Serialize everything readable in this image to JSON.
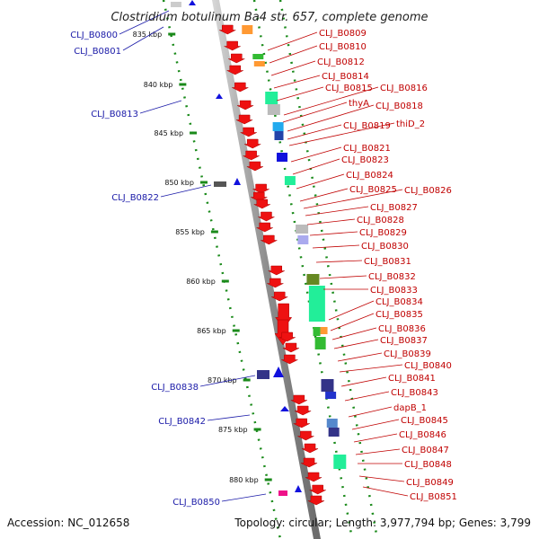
{
  "title": "Clostridium botulinum Ba4 str. 657, complete genome",
  "footer": {
    "accession": "Accession: NC_012658",
    "stats": "Topology: circular; Length: 3,977,794 bp; Genes: 3,799"
  },
  "ruler": [
    "835 kbp",
    "840 kbp",
    "845 kbp",
    "850 kbp",
    "855 kbp",
    "860 kbp",
    "865 kbp",
    "870 kbp",
    "875 kbp",
    "880 kbp"
  ],
  "right_labels": [
    "CLJ_B0809",
    "CLJ_B0810",
    "CLJ_B0812",
    "CLJ_B0814",
    "CLJ_B0815",
    "CLJ_B0816",
    "thyA",
    "CLJ_B0818",
    "CLJ_B0819",
    "thiD_2",
    "CLJ_B0821",
    "CLJ_B0823",
    "CLJ_B0824",
    "CLJ_B0825",
    "CLJ_B0826",
    "CLJ_B0827",
    "CLJ_B0828",
    "CLJ_B0829",
    "CLJ_B0830",
    "CLJ_B0831",
    "CLJ_B0832",
    "CLJ_B0833",
    "CLJ_B0834",
    "CLJ_B0835",
    "CLJ_B0836",
    "CLJ_B0837",
    "CLJ_B0839",
    "CLJ_B0840",
    "CLJ_B0841",
    "CLJ_B0843",
    "dapB_1",
    "CLJ_B0845",
    "CLJ_B0846",
    "CLJ_B0847",
    "CLJ_B0848",
    "CLJ_B0849",
    "CLJ_B0851"
  ],
  "left_labels": [
    "CLJ_B0800",
    "CLJ_B0801",
    "CLJ_B0813",
    "CLJ_B0822",
    "CLJ_B0838",
    "CLJ_B0842",
    "CLJ_B0850"
  ],
  "colors": {
    "backbone": "#9a9a9a",
    "cds_forward": "#ee1111",
    "cds_reverse": "#1111dd",
    "ruler": "#1a8a1a",
    "right_label": "#c00000",
    "left_label": "#1a1aa8"
  }
}
